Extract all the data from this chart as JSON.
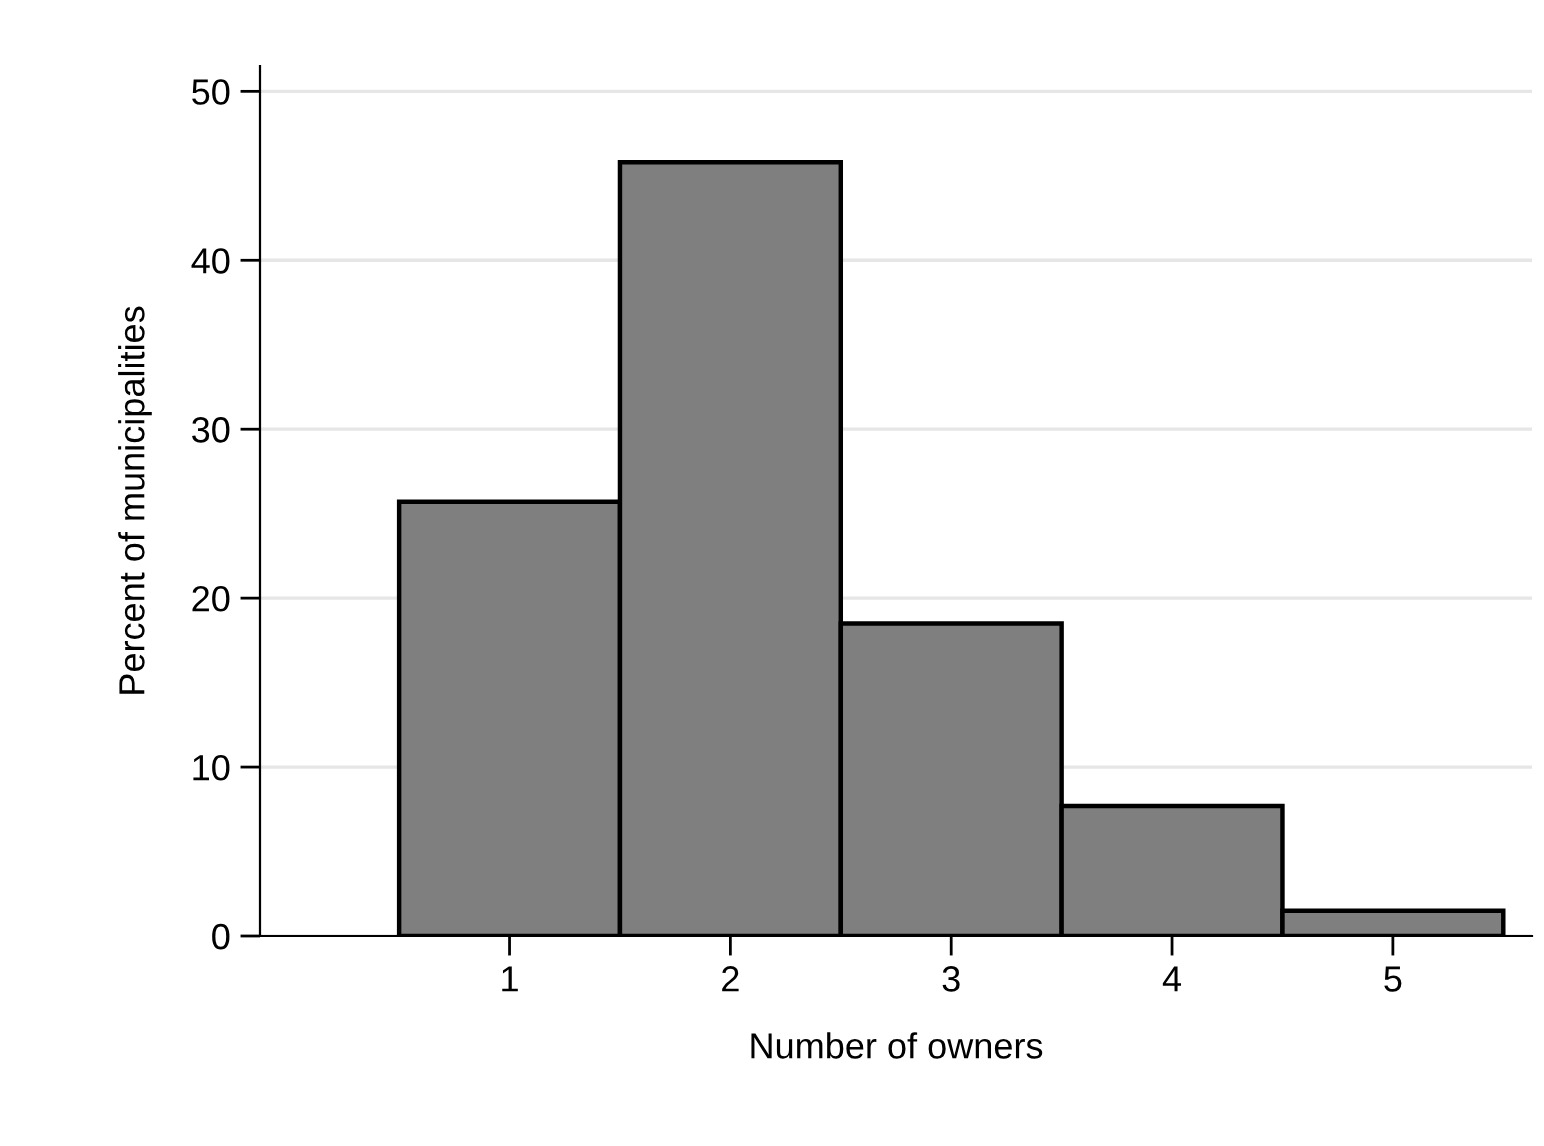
{
  "chart_data": {
    "type": "histogram",
    "xlabel": "Number of owners",
    "ylabel": "Percent of municipalities",
    "bins": [
      0.5,
      1.5,
      2.5,
      3.5,
      4.5,
      5.5
    ],
    "values": [
      25.7,
      45.8,
      18.5,
      7.7,
      1.5
    ],
    "color": "#7f7f7f",
    "xlim": [
      -0.13,
      5.63
    ],
    "xticks": [
      1,
      2,
      3,
      4,
      5
    ],
    "ylim": [
      0,
      51.5
    ],
    "yticks": [
      0,
      10,
      20,
      30,
      40,
      50
    ],
    "grid": "y"
  }
}
